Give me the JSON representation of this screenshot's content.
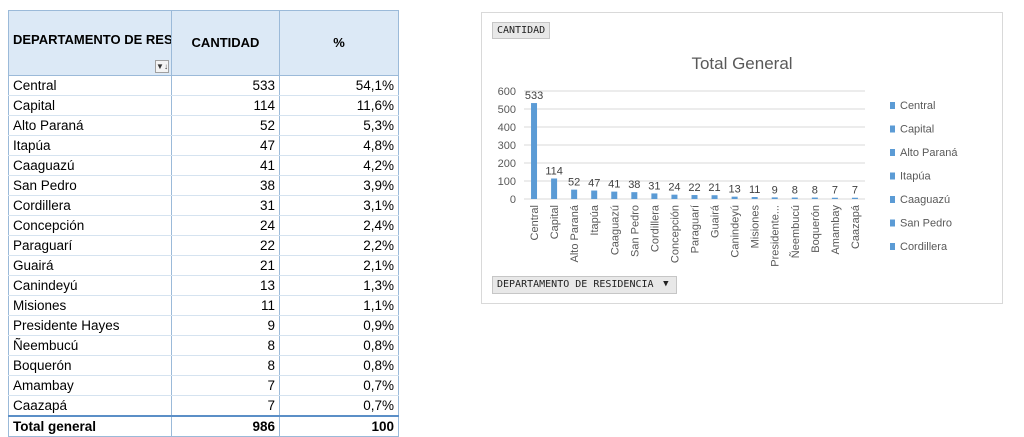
{
  "table": {
    "headers": {
      "departamento": "DEPARTAMENTO DE RESIDENCIA",
      "cantidad": "CANTIDAD",
      "pct": "%"
    },
    "filter_icon": "filter-dropdown-icon",
    "rows": [
      {
        "departamento": "Central",
        "cantidad": "533",
        "pct": "54,1%"
      },
      {
        "departamento": "Capital",
        "cantidad": "114",
        "pct": "11,6%"
      },
      {
        "departamento": "Alto Paraná",
        "cantidad": "52",
        "pct": "5,3%"
      },
      {
        "departamento": "Itapúa",
        "cantidad": "47",
        "pct": "4,8%"
      },
      {
        "departamento": "Caaguazú",
        "cantidad": "41",
        "pct": "4,2%"
      },
      {
        "departamento": "San Pedro",
        "cantidad": "38",
        "pct": "3,9%"
      },
      {
        "departamento": "Cordillera",
        "cantidad": "31",
        "pct": "3,1%"
      },
      {
        "departamento": "Concepción",
        "cantidad": "24",
        "pct": "2,4%"
      },
      {
        "departamento": "Paraguarí",
        "cantidad": "22",
        "pct": "2,2%"
      },
      {
        "departamento": "Guairá",
        "cantidad": "21",
        "pct": "2,1%"
      },
      {
        "departamento": "Canindeyú",
        "cantidad": "13",
        "pct": "1,3%"
      },
      {
        "departamento": "Misiones",
        "cantidad": "11",
        "pct": "1,1%"
      },
      {
        "departamento": "Presidente Hayes",
        "cantidad": "9",
        "pct": "0,9%"
      },
      {
        "departamento": "Ñeembucú",
        "cantidad": "8",
        "pct": "0,8%"
      },
      {
        "departamento": "Boquerón",
        "cantidad": "8",
        "pct": "0,8%"
      },
      {
        "departamento": "Amambay",
        "cantidad": "7",
        "pct": "0,7%"
      },
      {
        "departamento": "Caazapá",
        "cantidad": "7",
        "pct": "0,7%"
      }
    ],
    "total": {
      "label": "Total general",
      "cantidad": "986",
      "pct": "100"
    }
  },
  "chart_ui": {
    "value_field_button": "CANTIDAD",
    "axis_field_button": "DEPARTAMENTO DE RESIDENCIA",
    "axis_field_dropdown_icon": "dropdown-triangle-icon"
  },
  "chart_data": {
    "type": "bar",
    "title": "Total General",
    "xlabel": "",
    "ylabel": "",
    "categories": [
      "Central",
      "Capital",
      "Alto Paraná",
      "Itapúa",
      "Caaguazú",
      "San Pedro",
      "Cordillera",
      "Concepción",
      "Paraguarí",
      "Guairá",
      "Canindeyú",
      "Misiones",
      "Presidente...",
      "Ñeembucú",
      "Boquerón",
      "Amambay",
      "Caazapá"
    ],
    "series": [
      {
        "values": [
          533,
          114,
          52,
          47,
          41,
          38,
          31,
          24,
          22,
          21,
          13,
          11,
          9,
          8,
          8,
          7,
          7
        ]
      }
    ],
    "data_labels": true,
    "ylim": [
      0,
      600
    ],
    "yticks": [
      0,
      100,
      200,
      300,
      400,
      500,
      600
    ],
    "grid": true,
    "legend_position": "right",
    "legend_entries": [
      "Central",
      "Capital",
      "Alto Paraná",
      "Itapúa",
      "Caaguazú",
      "San Pedro",
      "Cordillera"
    ],
    "bar_color": "#5b9bd5",
    "grid_color": "#d9d9d9",
    "text_color": "#595959"
  }
}
